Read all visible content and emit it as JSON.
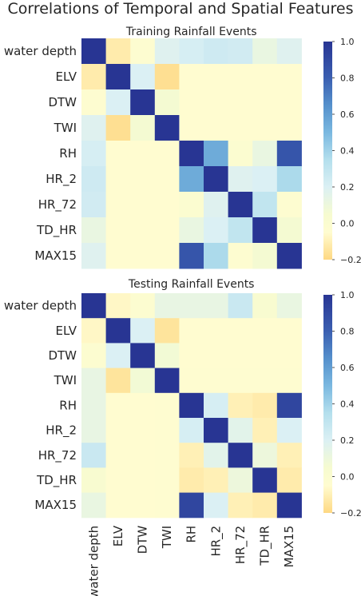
{
  "figure_title": "Correlations of Temporal and Spatial Features",
  "colormap": {
    "vmin": -0.2,
    "vmax": 1.0,
    "stops": [
      {
        "v": -0.2,
        "color": "#fed882"
      },
      {
        "v": -0.05,
        "color": "#fffcd0"
      },
      {
        "v": 0.05,
        "color": "#f6fbd0"
      },
      {
        "v": 0.2,
        "color": "#dbf0f4"
      },
      {
        "v": 0.35,
        "color": "#b4dfed"
      },
      {
        "v": 0.5,
        "color": "#7ab8e0"
      },
      {
        "v": 0.65,
        "color": "#5590cc"
      },
      {
        "v": 0.8,
        "color": "#3b5fb1"
      },
      {
        "v": 1.0,
        "color": "#283593"
      }
    ],
    "ticks": [
      "1.0",
      "0.8",
      "0.6",
      "0.4",
      "0.2",
      "0.0",
      "−0.2"
    ]
  },
  "chart_data": [
    {
      "type": "heatmap",
      "title": "Training Rainfall Events",
      "rows": [
        "water depth",
        "ELV",
        "DTW",
        "TWI",
        "RH",
        "HR_2",
        "HR_72",
        "TD_HR",
        "MAX15"
      ],
      "columns": [
        "water depth",
        "ELV",
        "DTW",
        "TWI",
        "RH",
        "HR_2",
        "HR_72",
        "TD_HR",
        "MAX15"
      ],
      "x_tick_labels_shown": false,
      "values": [
        [
          1.0,
          -0.12,
          -0.03,
          0.18,
          0.22,
          0.25,
          0.24,
          0.12,
          0.18
        ],
        [
          -0.12,
          1.0,
          0.2,
          -0.17,
          -0.05,
          -0.05,
          -0.05,
          -0.05,
          -0.05
        ],
        [
          -0.03,
          0.2,
          1.0,
          0.06,
          -0.05,
          -0.05,
          -0.05,
          -0.05,
          -0.05
        ],
        [
          0.18,
          -0.17,
          0.06,
          1.0,
          -0.05,
          -0.05,
          -0.05,
          -0.05,
          -0.05
        ],
        [
          0.22,
          -0.05,
          -0.05,
          -0.05,
          1.0,
          0.55,
          0.0,
          0.12,
          0.85
        ],
        [
          0.25,
          -0.05,
          -0.05,
          -0.05,
          0.55,
          1.0,
          0.18,
          0.2,
          0.37
        ],
        [
          0.24,
          -0.05,
          -0.05,
          -0.05,
          0.0,
          0.18,
          1.0,
          0.3,
          -0.03
        ],
        [
          0.12,
          -0.05,
          -0.05,
          -0.05,
          0.12,
          0.2,
          0.3,
          1.0,
          0.06
        ],
        [
          0.18,
          -0.05,
          -0.05,
          -0.05,
          0.85,
          0.37,
          -0.03,
          0.06,
          1.0
        ]
      ]
    },
    {
      "type": "heatmap",
      "title": "Testing Rainfall Events",
      "rows": [
        "water depth",
        "ELV",
        "DTW",
        "TWI",
        "RH",
        "HR_2",
        "HR_72",
        "TD_HR",
        "MAX15"
      ],
      "columns": [
        "water depth",
        "ELV",
        "DTW",
        "TWI",
        "RH",
        "HR_2",
        "HR_72",
        "TD_HR",
        "MAX15"
      ],
      "x_tick_labels_shown": true,
      "values": [
        [
          1.0,
          -0.07,
          -0.02,
          0.13,
          0.13,
          0.13,
          0.27,
          0.03,
          0.12
        ],
        [
          -0.07,
          1.0,
          0.2,
          -0.15,
          -0.05,
          -0.05,
          -0.05,
          -0.05,
          -0.05
        ],
        [
          -0.02,
          0.2,
          1.0,
          0.07,
          -0.05,
          -0.05,
          -0.05,
          -0.05,
          -0.05
        ],
        [
          0.13,
          -0.15,
          0.07,
          1.0,
          -0.04,
          -0.04,
          -0.04,
          -0.04,
          -0.04
        ],
        [
          0.13,
          -0.05,
          -0.05,
          -0.04,
          1.0,
          0.22,
          -0.1,
          -0.12,
          0.92
        ],
        [
          0.13,
          -0.05,
          -0.05,
          -0.04,
          0.22,
          1.0,
          0.16,
          -0.1,
          0.2
        ],
        [
          0.27,
          -0.05,
          -0.05,
          -0.04,
          -0.1,
          0.16,
          1.0,
          0.1,
          -0.1
        ],
        [
          0.03,
          -0.05,
          -0.05,
          -0.04,
          -0.12,
          -0.1,
          0.1,
          1.0,
          -0.12
        ],
        [
          0.12,
          -0.05,
          -0.05,
          -0.04,
          0.92,
          0.2,
          -0.1,
          -0.12,
          1.0
        ]
      ]
    }
  ]
}
